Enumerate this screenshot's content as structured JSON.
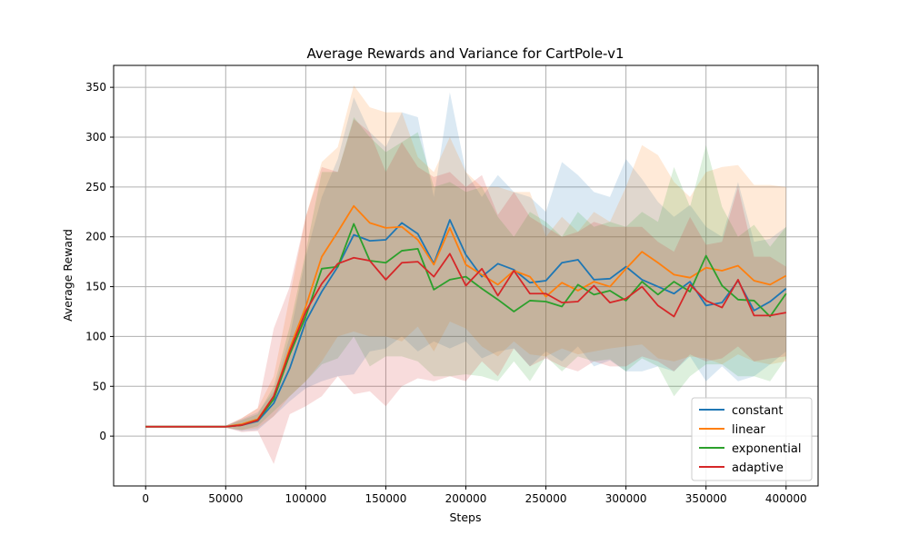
{
  "chart_data": {
    "type": "line",
    "title": "Average Rewards and Variance for CartPole-v1",
    "xlabel": "Steps",
    "ylabel": "Average Reward",
    "xlim": [
      -20000,
      420000
    ],
    "ylim": [
      -50,
      372
    ],
    "xticks": [
      0,
      50000,
      100000,
      150000,
      200000,
      250000,
      300000,
      350000,
      400000
    ],
    "yticks": [
      0,
      50,
      100,
      150,
      200,
      250,
      300,
      350
    ],
    "grid": true,
    "legend_position": "bottom-right",
    "x": [
      0,
      10000,
      20000,
      30000,
      40000,
      50000,
      60000,
      70000,
      80000,
      90000,
      100000,
      110000,
      120000,
      130000,
      140000,
      150000,
      160000,
      170000,
      180000,
      190000,
      200000,
      210000,
      220000,
      230000,
      240000,
      250000,
      260000,
      270000,
      280000,
      290000,
      300000,
      310000,
      320000,
      330000,
      340000,
      350000,
      360000,
      370000,
      380000,
      390000,
      400000
    ],
    "series": [
      {
        "name": "constant",
        "color": "#1f77b4",
        "values": [
          9.5,
          9.5,
          9.5,
          9.5,
          9.5,
          9.5,
          11,
          15,
          33,
          68,
          115,
          145,
          170,
          202,
          196,
          197,
          214,
          203,
          173,
          217,
          182,
          160,
          173,
          167,
          154,
          156,
          174,
          177,
          157,
          158,
          170,
          157,
          150,
          143,
          155,
          131,
          134,
          156,
          126,
          135,
          148
        ],
        "upper": [
          10.5,
          10.5,
          10.5,
          10.5,
          10.5,
          10.5,
          17,
          24,
          45,
          100,
          180,
          240,
          278,
          340,
          305,
          290,
          325,
          320,
          240,
          345,
          265,
          240,
          262,
          245,
          240,
          225,
          275,
          262,
          245,
          240,
          278,
          258,
          235,
          220,
          232,
          210,
          200,
          255,
          195,
          198,
          210
        ],
        "lower": [
          8.5,
          8.5,
          8.5,
          8.5,
          8.5,
          8.5,
          5,
          6,
          20,
          35,
          48,
          55,
          60,
          62,
          85,
          88,
          100,
          85,
          95,
          88,
          95,
          78,
          85,
          88,
          70,
          85,
          75,
          90,
          70,
          76,
          65,
          65,
          70,
          65,
          80,
          55,
          70,
          55,
          60,
          72,
          85
        ]
      },
      {
        "name": "linear",
        "color": "#ff7f0e",
        "values": [
          9.5,
          9.5,
          9.5,
          9.5,
          9.5,
          9.5,
          12,
          17,
          40,
          88,
          130,
          180,
          205,
          231,
          214,
          209,
          210,
          197,
          172,
          209,
          172,
          162,
          152,
          166,
          160,
          140,
          154,
          146,
          155,
          150,
          168,
          185,
          174,
          162,
          159,
          169,
          166,
          171,
          156,
          152,
          161
        ],
        "upper": [
          10.5,
          10.5,
          10.5,
          10.5,
          10.5,
          10.5,
          18,
          28,
          60,
          140,
          220,
          275,
          290,
          352,
          330,
          325,
          325,
          280,
          265,
          300,
          265,
          250,
          250,
          245,
          245,
          200,
          220,
          205,
          225,
          215,
          250,
          292,
          282,
          255,
          240,
          265,
          270,
          272,
          252,
          252,
          250
        ],
        "lower": [
          8.5,
          8.5,
          8.5,
          8.5,
          8.5,
          8.5,
          6,
          8,
          20,
          40,
          55,
          75,
          100,
          105,
          100,
          100,
          95,
          110,
          85,
          115,
          108,
          90,
          80,
          95,
          82,
          80,
          88,
          82,
          85,
          88,
          90,
          92,
          78,
          75,
          80,
          78,
          72,
          82,
          75,
          72,
          75
        ]
      },
      {
        "name": "exponential",
        "color": "#2ca02c",
        "values": [
          9.5,
          9.5,
          9.5,
          9.5,
          9.5,
          9.5,
          11,
          16,
          37,
          82,
          120,
          168,
          170,
          213,
          176,
          174,
          186,
          188,
          147,
          157,
          160,
          148,
          137,
          125,
          136,
          135,
          130,
          152,
          142,
          146,
          136,
          155,
          142,
          155,
          145,
          181,
          151,
          137,
          136,
          120,
          143
        ],
        "upper": [
          10.5,
          10.5,
          10.5,
          10.5,
          10.5,
          10.5,
          16,
          22,
          50,
          110,
          185,
          265,
          265,
          320,
          300,
          285,
          295,
          305,
          250,
          255,
          245,
          250,
          220,
          200,
          225,
          215,
          200,
          225,
          210,
          215,
          210,
          225,
          215,
          270,
          230,
          292,
          230,
          200,
          212,
          190,
          210
        ],
        "lower": [
          8.5,
          8.5,
          8.5,
          8.5,
          8.5,
          8.5,
          6,
          10,
          25,
          40,
          55,
          72,
          78,
          100,
          70,
          80,
          80,
          75,
          60,
          60,
          62,
          60,
          55,
          75,
          55,
          80,
          65,
          80,
          75,
          77,
          65,
          78,
          70,
          40,
          60,
          72,
          72,
          60,
          60,
          55,
          78
        ]
      },
      {
        "name": "adaptive",
        "color": "#d62728",
        "values": [
          9.5,
          9.5,
          9.5,
          9.5,
          9.5,
          9.5,
          11,
          16,
          40,
          85,
          125,
          153,
          173,
          179,
          176,
          157,
          174,
          175,
          160,
          183,
          151,
          168,
          141,
          166,
          143,
          143,
          134,
          135,
          151,
          134,
          138,
          150,
          131,
          120,
          152,
          136,
          129,
          157,
          121,
          121,
          124
        ],
        "upper": [
          10.5,
          10.5,
          10.5,
          10.5,
          10.5,
          10.5,
          18,
          28,
          108,
          150,
          220,
          270,
          265,
          318,
          305,
          265,
          295,
          270,
          260,
          265,
          250,
          262,
          222,
          245,
          220,
          210,
          200,
          205,
          215,
          210,
          210,
          210,
          195,
          185,
          220,
          192,
          195,
          250,
          180,
          180,
          170
        ],
        "lower": [
          8.5,
          8.5,
          8.5,
          8.5,
          8.5,
          8.5,
          4,
          5,
          -28,
          22,
          30,
          40,
          60,
          42,
          45,
          30,
          50,
          58,
          55,
          60,
          55,
          75,
          60,
          88,
          70,
          78,
          70,
          65,
          75,
          70,
          70,
          80,
          75,
          65,
          82,
          75,
          78,
          90,
          75,
          78,
          80
        ]
      }
    ]
  }
}
